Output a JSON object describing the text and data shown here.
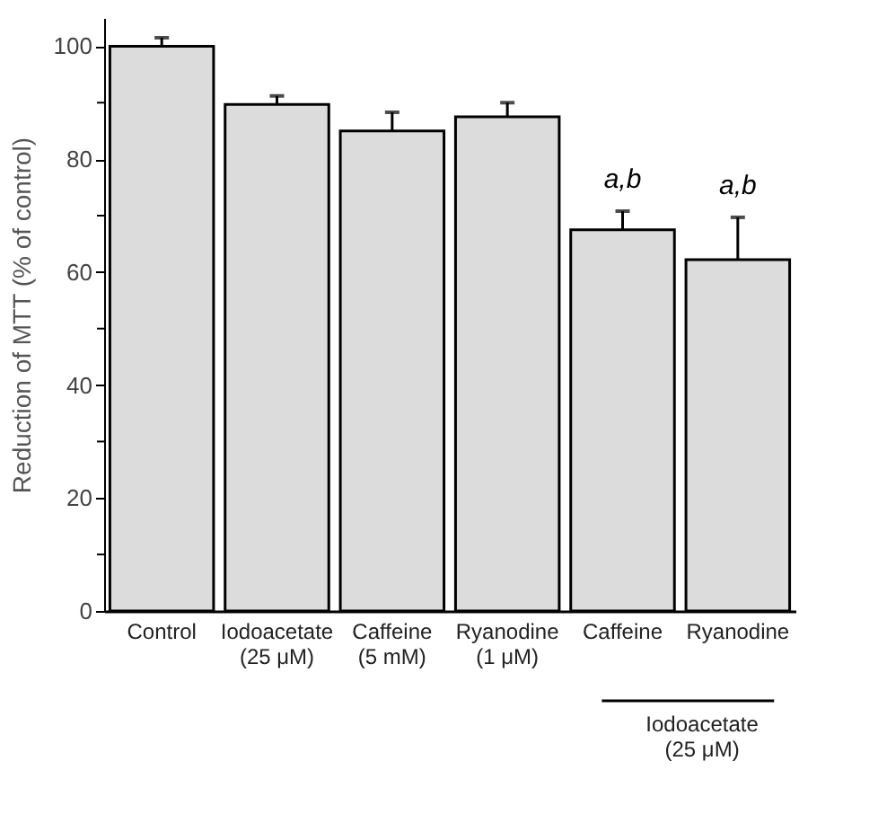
{
  "chart_data": {
    "type": "bar",
    "ylabel": "Reduction of MTT (% of control)",
    "categories": [
      "Control",
      "Iodoacetate\n(25 μM)",
      "Caffeine\n(5 mM)",
      "Ryanodine\n(1 μM)",
      "Caffeine",
      "Ryanodine"
    ],
    "values": [
      100,
      89.7,
      85,
      87.5,
      67.5,
      62.2
    ],
    "errors": [
      [
        100,
        101.5
      ],
      [
        89.7,
        91.2
      ],
      [
        85,
        88.3
      ],
      [
        87.5,
        90
      ],
      [
        67.5,
        70.8
      ],
      [
        62.2,
        69.7
      ]
    ],
    "color": "#dcdcdc",
    "ylim": [
      0,
      105
    ],
    "yticks": [
      0,
      {
        "value": 10,
        "label": null
      },
      20,
      {
        "value": 30,
        "label": null
      },
      40,
      {
        "value": 50,
        "label": null
      },
      60,
      {
        "value": 70,
        "label": null
      },
      80,
      {
        "value": 90,
        "label": null
      },
      100
    ],
    "grid": false,
    "annotations": [
      "a,b",
      "a,b",
      "Iodoacetate\n(25 μM)"
    ]
  }
}
